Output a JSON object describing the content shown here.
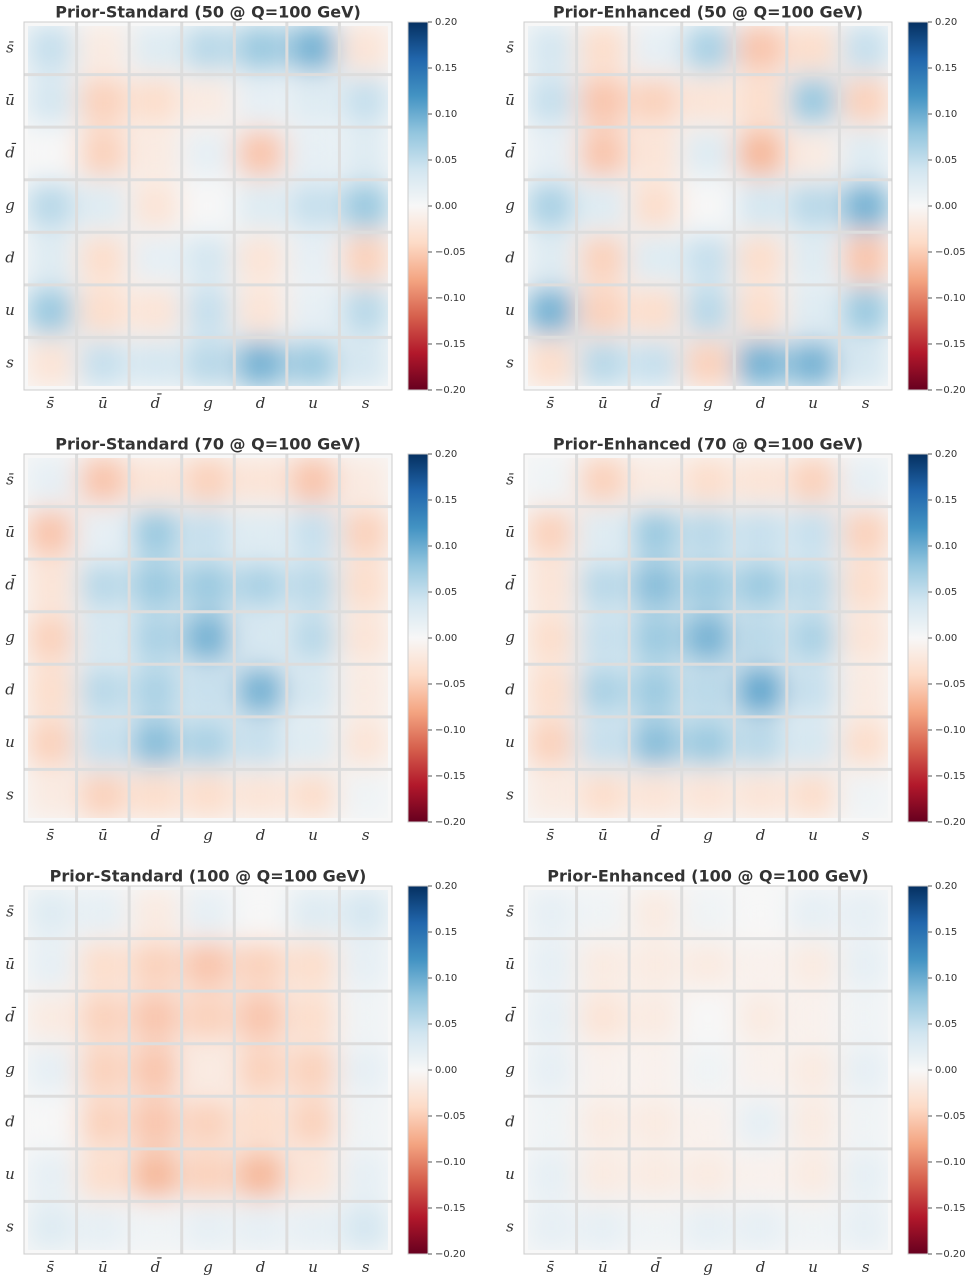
{
  "chart_data": [
    {
      "type": "heatmap",
      "title": "Prior-Standard (50 @ Q=100 GeV)",
      "cmap": "RdBu",
      "categories": [
        "s̄",
        "ū",
        "d̄",
        "g",
        "d",
        "u",
        "s"
      ],
      "values": [
        [
          0.05,
          -0.02,
          0.03,
          0.06,
          0.08,
          0.1,
          -0.03
        ],
        [
          0.04,
          -0.05,
          -0.04,
          -0.02,
          0.02,
          0.03,
          0.05
        ],
        [
          0.0,
          -0.05,
          -0.02,
          0.02,
          -0.06,
          0.02,
          0.03
        ],
        [
          0.06,
          0.03,
          -0.03,
          0.0,
          0.03,
          0.05,
          0.08
        ],
        [
          0.03,
          -0.04,
          0.02,
          0.04,
          -0.03,
          0.02,
          -0.05
        ],
        [
          0.08,
          -0.04,
          -0.03,
          0.05,
          -0.03,
          0.02,
          0.06
        ],
        [
          -0.03,
          0.05,
          0.04,
          0.06,
          0.1,
          0.08,
          0.04
        ]
      ],
      "zlim": [
        -0.2,
        0.2
      ],
      "zticks": [
        {
          "value": 0.2,
          "label": "0.20"
        },
        {
          "value": 0.15,
          "label": "0.15"
        },
        {
          "value": 0.1,
          "label": "0.10"
        },
        {
          "value": 0.05,
          "label": "0.05"
        },
        {
          "value": 0,
          "label": "0.00"
        },
        {
          "value": -0.05,
          "label": "−0.05"
        },
        {
          "value": -0.1,
          "label": "−0.10"
        },
        {
          "value": -0.15,
          "label": "−0.15"
        },
        {
          "value": -0.2,
          "label": "−0.20"
        }
      ]
    },
    {
      "type": "heatmap",
      "title": "Prior-Enhanced (50 @ Q=100 GeV)",
      "cmap": "RdBu",
      "categories": [
        "s̄",
        "ū",
        "d̄",
        "g",
        "d",
        "u",
        "s"
      ],
      "values": [
        [
          0.04,
          -0.04,
          0.02,
          0.07,
          -0.06,
          -0.04,
          0.05
        ],
        [
          0.05,
          -0.06,
          -0.05,
          -0.03,
          -0.04,
          0.08,
          -0.05
        ],
        [
          0.02,
          -0.06,
          -0.03,
          0.03,
          -0.07,
          -0.02,
          0.03
        ],
        [
          0.07,
          0.03,
          -0.04,
          0.0,
          0.04,
          0.06,
          0.1
        ],
        [
          0.03,
          -0.05,
          0.03,
          0.05,
          -0.04,
          0.03,
          -0.06
        ],
        [
          0.1,
          -0.05,
          -0.04,
          0.06,
          -0.04,
          0.03,
          0.08
        ],
        [
          -0.04,
          0.06,
          0.05,
          -0.05,
          0.1,
          0.1,
          0.04
        ]
      ],
      "zlim": [
        -0.2,
        0.2
      ],
      "zticks": [
        {
          "value": 0.2,
          "label": "0.20"
        },
        {
          "value": 0.15,
          "label": "0.15"
        },
        {
          "value": 0.1,
          "label": "0.10"
        },
        {
          "value": 0.05,
          "label": "0.05"
        },
        {
          "value": 0,
          "label": "0.00"
        },
        {
          "value": -0.05,
          "label": "−0.05"
        },
        {
          "value": -0.1,
          "label": "−0.10"
        },
        {
          "value": -0.15,
          "label": "−0.15"
        },
        {
          "value": -0.2,
          "label": "−0.20"
        }
      ]
    },
    {
      "type": "heatmap",
      "title": "Prior-Standard (70 @ Q=100 GeV)",
      "cmap": "RdBu",
      "categories": [
        "s̄",
        "ū",
        "d̄",
        "g",
        "d",
        "u",
        "s"
      ],
      "values": [
        [
          0.02,
          -0.06,
          -0.03,
          -0.05,
          -0.03,
          -0.06,
          -0.02
        ],
        [
          -0.06,
          0.02,
          0.08,
          0.05,
          0.03,
          0.05,
          -0.05
        ],
        [
          -0.03,
          0.06,
          0.08,
          0.08,
          0.07,
          0.06,
          -0.04
        ],
        [
          -0.05,
          0.04,
          0.07,
          0.1,
          0.04,
          0.06,
          -0.03
        ],
        [
          -0.04,
          0.06,
          0.07,
          0.05,
          0.1,
          0.04,
          -0.02
        ],
        [
          -0.05,
          0.05,
          0.09,
          0.07,
          0.05,
          0.03,
          -0.03
        ],
        [
          -0.02,
          -0.05,
          -0.04,
          -0.04,
          -0.03,
          -0.04,
          0.01
        ]
      ],
      "zlim": [
        -0.2,
        0.2
      ],
      "zticks": [
        {
          "value": 0.2,
          "label": "0.20"
        },
        {
          "value": 0.15,
          "label": "0.15"
        },
        {
          "value": 0.1,
          "label": "0.10"
        },
        {
          "value": 0.05,
          "label": "0.05"
        },
        {
          "value": 0,
          "label": "0.00"
        },
        {
          "value": -0.05,
          "label": "−0.05"
        },
        {
          "value": -0.1,
          "label": "−0.10"
        },
        {
          "value": -0.15,
          "label": "−0.15"
        },
        {
          "value": -0.2,
          "label": "−0.20"
        }
      ]
    },
    {
      "type": "heatmap",
      "title": "Prior-Enhanced (70 @ Q=100 GeV)",
      "cmap": "RdBu",
      "categories": [
        "s̄",
        "ū",
        "d̄",
        "g",
        "d",
        "u",
        "s"
      ],
      "values": [
        [
          0.01,
          -0.05,
          -0.02,
          -0.04,
          -0.03,
          -0.05,
          0.02
        ],
        [
          -0.05,
          0.03,
          0.08,
          0.06,
          0.05,
          0.05,
          -0.05
        ],
        [
          -0.03,
          0.06,
          0.09,
          0.08,
          0.08,
          0.06,
          -0.04
        ],
        [
          -0.04,
          0.05,
          0.08,
          0.1,
          0.06,
          0.07,
          -0.03
        ],
        [
          -0.04,
          0.07,
          0.08,
          0.06,
          0.11,
          0.05,
          -0.02
        ],
        [
          -0.05,
          0.05,
          0.09,
          0.08,
          0.06,
          0.04,
          -0.04
        ],
        [
          -0.02,
          -0.04,
          -0.03,
          -0.03,
          -0.03,
          -0.04,
          0.01
        ]
      ],
      "zlim": [
        -0.2,
        0.2
      ],
      "zticks": [
        {
          "value": 0.2,
          "label": "0.20"
        },
        {
          "value": 0.15,
          "label": "0.15"
        },
        {
          "value": 0.1,
          "label": "0.10"
        },
        {
          "value": 0.05,
          "label": "0.05"
        },
        {
          "value": 0,
          "label": "0.00"
        },
        {
          "value": -0.05,
          "label": "−0.05"
        },
        {
          "value": -0.1,
          "label": "−0.10"
        },
        {
          "value": -0.15,
          "label": "−0.15"
        },
        {
          "value": -0.2,
          "label": "−0.20"
        }
      ]
    },
    {
      "type": "heatmap",
      "title": "Prior-Standard (100 @ Q=100 GeV)",
      "cmap": "RdBu",
      "categories": [
        "s̄",
        "ū",
        "d̄",
        "g",
        "d",
        "u",
        "s"
      ],
      "values": [
        [
          0.03,
          0.02,
          -0.02,
          0.02,
          0.0,
          0.03,
          0.04
        ],
        [
          0.02,
          -0.04,
          -0.05,
          -0.06,
          -0.05,
          -0.04,
          0.02
        ],
        [
          -0.02,
          -0.05,
          -0.06,
          -0.05,
          -0.06,
          -0.04,
          0.01
        ],
        [
          0.02,
          -0.05,
          -0.06,
          -0.02,
          -0.05,
          -0.05,
          0.02
        ],
        [
          0.0,
          -0.05,
          -0.06,
          -0.05,
          -0.04,
          -0.05,
          0.01
        ],
        [
          0.02,
          -0.04,
          -0.07,
          -0.05,
          -0.07,
          -0.03,
          0.02
        ],
        [
          0.03,
          0.02,
          0.01,
          0.02,
          0.02,
          0.02,
          0.04
        ]
      ],
      "zlim": [
        -0.2,
        0.2
      ],
      "zticks": [
        {
          "value": 0.2,
          "label": "0.20"
        },
        {
          "value": 0.15,
          "label": "0.15"
        },
        {
          "value": 0.1,
          "label": "0.10"
        },
        {
          "value": 0.05,
          "label": "0.05"
        },
        {
          "value": 0,
          "label": "0.00"
        },
        {
          "value": -0.05,
          "label": "−0.05"
        },
        {
          "value": -0.1,
          "label": "−0.10"
        },
        {
          "value": -0.15,
          "label": "−0.15"
        },
        {
          "value": -0.2,
          "label": "−0.20"
        }
      ]
    },
    {
      "type": "heatmap",
      "title": "Prior-Enhanced (100 @ Q=100 GeV)",
      "cmap": "RdBu",
      "categories": [
        "s̄",
        "ū",
        "d̄",
        "g",
        "d",
        "u",
        "s"
      ],
      "values": [
        [
          0.02,
          0.01,
          -0.02,
          0.01,
          0.0,
          0.02,
          0.02
        ],
        [
          0.02,
          -0.02,
          -0.02,
          -0.02,
          -0.01,
          -0.02,
          0.02
        ],
        [
          0.02,
          -0.03,
          -0.02,
          0.0,
          -0.02,
          -0.01,
          0.01
        ],
        [
          0.02,
          -0.01,
          -0.01,
          0.01,
          -0.01,
          -0.02,
          0.02
        ],
        [
          0.01,
          -0.02,
          -0.02,
          -0.01,
          0.02,
          -0.02,
          0.01
        ],
        [
          0.02,
          -0.02,
          -0.02,
          -0.02,
          -0.01,
          -0.02,
          0.02
        ],
        [
          0.02,
          0.02,
          0.01,
          0.02,
          0.02,
          0.01,
          0.02
        ]
      ],
      "zlim": [
        -0.2,
        0.2
      ],
      "zticks": [
        {
          "value": 0.2,
          "label": "0.20"
        },
        {
          "value": 0.15,
          "label": "0.15"
        },
        {
          "value": 0.1,
          "label": "0.10"
        },
        {
          "value": 0.05,
          "label": "0.05"
        },
        {
          "value": 0,
          "label": "0.00"
        },
        {
          "value": -0.05,
          "label": "−0.05"
        },
        {
          "value": -0.1,
          "label": "−0.10"
        },
        {
          "value": -0.15,
          "label": "−0.15"
        },
        {
          "value": -0.2,
          "label": "−0.20"
        }
      ]
    }
  ]
}
